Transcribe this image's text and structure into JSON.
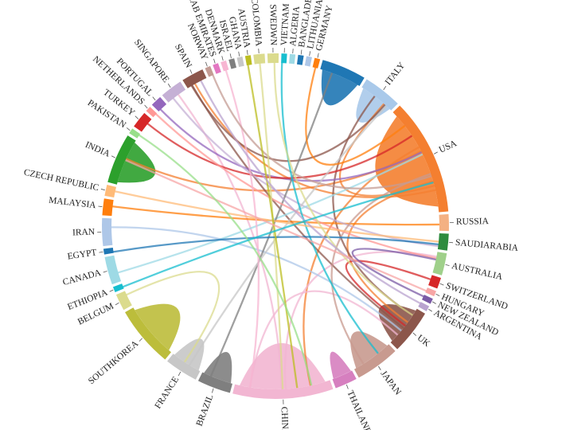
{
  "chart_data": {
    "type": "chord",
    "title": "",
    "groups": [
      {
        "name": "RUSSIA",
        "color": "#f4b183",
        "weight": 3
      },
      {
        "name": "SAUDIARABIA",
        "color": "#2e8b3e",
        "weight": 3
      },
      {
        "name": "AUSTRALIA",
        "color": "#9fd08a",
        "weight": 4
      },
      {
        "name": "SWITZERLAND",
        "color": "#d62728",
        "weight": 2
      },
      {
        "name": "HUNGARY",
        "color": "#f7a6a6",
        "weight": 1
      },
      {
        "name": "NEW ZEALAND",
        "color": "#7b5ba6",
        "weight": 1
      },
      {
        "name": "ARGENTINA",
        "color": "#b9a3cf",
        "weight": 1
      },
      {
        "name": "UK",
        "color": "#8c564b",
        "weight": 8
      },
      {
        "name": "JAPAN",
        "color": "#c89a8f",
        "weight": 8
      },
      {
        "name": "THAILAND",
        "color": "#d67fbf",
        "weight": 4
      },
      {
        "name": "CHINA",
        "color": "#f2b6d2",
        "weight": 18
      },
      {
        "name": "BRAZIL",
        "color": "#7f7f7f",
        "weight": 6
      },
      {
        "name": "FRANCE",
        "color": "#c7c7c7",
        "weight": 6
      },
      {
        "name": "SOUTHKOREA",
        "color": "#bcbd3b",
        "weight": 11
      },
      {
        "name": "BELGUM",
        "color": "#dbdb8d",
        "weight": 3
      },
      {
        "name": "ETHIOPIA",
        "color": "#17becf",
        "weight": 1
      },
      {
        "name": "CANADA",
        "color": "#9edae5",
        "weight": 5
      },
      {
        "name": "EGYPT",
        "color": "#1f77b4",
        "weight": 1
      },
      {
        "name": "IRAN",
        "color": "#aec7e8",
        "weight": 5
      },
      {
        "name": "MALAYSIA",
        "color": "#ff7f0e",
        "weight": 3
      },
      {
        "name": "CZECH REPUBLIC",
        "color": "#ffbb78",
        "weight": 2
      },
      {
        "name": "INDIA",
        "color": "#2ca02c",
        "weight": 9
      },
      {
        "name": "PAKISTAN",
        "color": "#98df8a",
        "weight": 1
      },
      {
        "name": "TURKEY",
        "color": "#d62728",
        "weight": 3
      },
      {
        "name": "NETHERLANDS",
        "color": "#ff9896",
        "weight": 1
      },
      {
        "name": "PORTUGAL",
        "color": "#9467bd",
        "weight": 2
      },
      {
        "name": "SINGAPORE",
        "color": "#c5b0d5",
        "weight": 4
      },
      {
        "name": "SPAIN",
        "color": "#8c564b",
        "weight": 4
      },
      {
        "name": "NORWAY",
        "color": "#c49c94",
        "weight": 1
      },
      {
        "name": "UARAB EMIRATES",
        "color": "#e377c2",
        "weight": 1
      },
      {
        "name": "DENMARK",
        "color": "#f7b6d2",
        "weight": 1
      },
      {
        "name": "ISRAEL",
        "color": "#7f7f7f",
        "weight": 1
      },
      {
        "name": "GHANA",
        "color": "#c7c7c7",
        "weight": 1
      },
      {
        "name": "AUSTRIA",
        "color": "#bcbd22",
        "weight": 1
      },
      {
        "name": "COLOMBIA",
        "color": "#dbdb8d",
        "weight": 2
      },
      {
        "name": "SWEDWN",
        "color": "#dbdb8d",
        "weight": 2
      },
      {
        "name": "VIETNAM",
        "color": "#17becf",
        "weight": 1
      },
      {
        "name": "ALGERIA",
        "color": "#9edae5",
        "weight": 1
      },
      {
        "name": "BANGLADESH",
        "color": "#1f77b4",
        "weight": 1
      },
      {
        "name": "LITHUANIA",
        "color": "#aec7e8",
        "weight": 1
      },
      {
        "name": "GERMANY",
        "color": "#ff7f0e",
        "weight": 1
      },
      {
        "name": "",
        "color": "#1f77b4",
        "weight": 8
      },
      {
        "name": "ITALY",
        "color": "#a9c9ea",
        "weight": 7
      },
      {
        "name": "USA",
        "color": "#f47f30",
        "weight": 21
      }
    ],
    "links": [
      {
        "source": "USA",
        "target": "USA",
        "value": 18
      },
      {
        "source": "CHINA",
        "target": "CHINA",
        "value": 14
      },
      {
        "source": "INDIA",
        "target": "INDIA",
        "value": 7
      },
      {
        "source": "SOUTHKOREA",
        "target": "SOUTHKOREA",
        "value": 8
      },
      {
        "source": "",
        "target": "",
        "value": 5
      },
      {
        "source": "ITALY",
        "target": "ITALY",
        "value": 4
      },
      {
        "source": "UK",
        "target": "UK",
        "value": 4
      },
      {
        "source": "JAPAN",
        "target": "JAPAN",
        "value": 4
      },
      {
        "source": "THAILAND",
        "target": "THAILAND",
        "value": 2
      },
      {
        "source": "FRANCE",
        "target": "FRANCE",
        "value": 3
      },
      {
        "source": "BRAZIL",
        "target": "BRAZIL",
        "value": 3
      },
      {
        "source": "USA",
        "target": "UK",
        "value": 1
      },
      {
        "source": "USA",
        "target": "CHINA",
        "value": 1
      },
      {
        "source": "USA",
        "target": "ITALY",
        "value": 1
      },
      {
        "source": "USA",
        "target": "INDIA",
        "value": 1
      },
      {
        "source": "USA",
        "target": "SPAIN",
        "value": 1
      },
      {
        "source": "CHINA",
        "target": "AUSTRALIA",
        "value": 1
      },
      {
        "source": "CHINA",
        "target": "UK",
        "value": 1
      },
      {
        "source": "CHINA",
        "target": "SINGAPORE",
        "value": 1
      },
      {
        "source": "UK",
        "target": "ITALY",
        "value": 1
      },
      {
        "source": "UK",
        "target": "SPAIN",
        "value": 1
      },
      {
        "source": "SPAIN",
        "target": "ITALY",
        "value": 1
      },
      {
        "source": "MALAYSIA",
        "target": "RUSSIA",
        "value": 1
      },
      {
        "source": "PORTUGAL",
        "target": "USA",
        "value": 1
      },
      {
        "source": "TURKEY",
        "target": "USA",
        "value": 1
      },
      {
        "source": "SINGAPORE",
        "target": "SAUDIARABIA",
        "value": 1
      },
      {
        "source": "IRAN",
        "target": "UK",
        "value": 1
      },
      {
        "source": "CANADA",
        "target": "USA",
        "value": 1
      },
      {
        "source": "BRAZIL",
        "target": "",
        "value": 1
      },
      {
        "source": "FRANCE",
        "target": "ITALY",
        "value": 1
      },
      {
        "source": "JAPAN",
        "target": "USA",
        "value": 1
      },
      {
        "source": "SWITZERLAND",
        "target": "UK",
        "value": 1
      },
      {
        "source": "NETHERLANDS",
        "target": "AUSTRALIA",
        "value": 1
      },
      {
        "source": "DENMARK",
        "target": "CHINA",
        "value": 1
      },
      {
        "source": "NORWAY",
        "target": "USA",
        "value": 1
      },
      {
        "source": "COLOMBIA",
        "target": "CHINA",
        "value": 1
      },
      {
        "source": "VIETNAM",
        "target": "JAPAN",
        "value": 1
      },
      {
        "source": "GERMANY",
        "target": "USA",
        "value": 1
      },
      {
        "source": "EGYPT",
        "target": "SAUDIARABIA",
        "value": 1
      },
      {
        "source": "CZECH REPUBLIC",
        "target": "SAUDIARABIA",
        "value": 1
      },
      {
        "source": "AUSTRIA",
        "target": "CHINA",
        "value": 1
      },
      {
        "source": "SWEDWN",
        "target": "UK",
        "value": 1
      },
      {
        "source": "ARGENTINA",
        "target": "SPAIN",
        "value": 1
      },
      {
        "source": "HUNGARY",
        "target": "INDIA",
        "value": 1
      },
      {
        "source": "NEW ZEALAND",
        "target": "AUSTRALIA",
        "value": 1
      },
      {
        "source": "PAKISTAN",
        "target": "CHINA",
        "value": 1
      },
      {
        "source": "ETHIOPIA",
        "target": "USA",
        "value": 1
      },
      {
        "source": "BELGUM",
        "target": "FRANCE",
        "value": 1
      }
    ]
  }
}
